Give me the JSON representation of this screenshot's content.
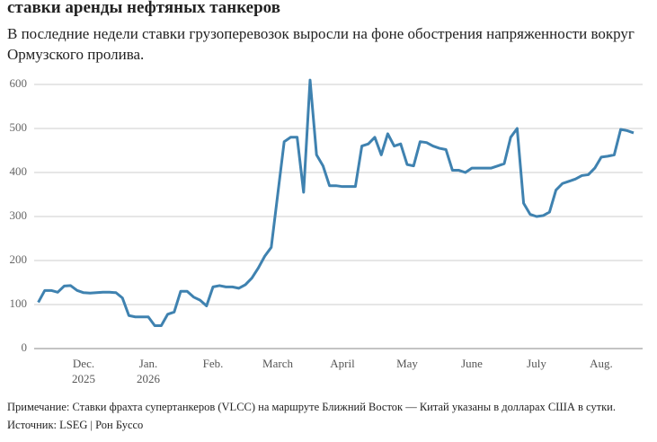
{
  "chart_data": {
    "type": "line",
    "title": "ставки аренды нефтяных танкеров",
    "subtitle": "В последние недели ставки грузоперевозок выросли на фоне обострения напряженности вокруг Ормузского пролива.",
    "note": "Примечание: Ставки фрахта супертанкеров (VLCC) на маршруте Ближний Восток — Китай указаны в долларах США в сутки.",
    "source": "Источник: LSEG | Рон Буссо",
    "categories": [
      null,
      null,
      null,
      null,
      null,
      null,
      null,
      "Dec.\n2025",
      null,
      null,
      null,
      null,
      null,
      null,
      null,
      null,
      null,
      "Jan.\n2026",
      null,
      null,
      null,
      null,
      null,
      null,
      null,
      null,
      null,
      "Feb.",
      null,
      null,
      null,
      null,
      null,
      null,
      null,
      null,
      null,
      "March",
      null,
      null,
      null,
      null,
      null,
      null,
      null,
      null,
      null,
      "April",
      null,
      null,
      null,
      null,
      null,
      null,
      null,
      null,
      null,
      "May",
      null,
      null,
      null,
      null,
      null,
      null,
      null,
      null,
      null,
      "June",
      null,
      null,
      null,
      null,
      null,
      null,
      null,
      null,
      null,
      "July",
      null,
      null,
      null,
      null,
      null,
      null,
      null,
      null,
      null,
      "Aug.",
      null,
      null,
      null,
      null,
      null
    ],
    "series": [
      {
        "name": "VLCC",
        "color": "#3f82b0",
        "values": [
          105,
          132,
          132,
          128,
          142,
          143,
          132,
          127,
          126,
          127,
          128,
          128,
          127,
          115,
          75,
          72,
          72,
          72,
          52,
          52,
          78,
          83,
          130,
          130,
          117,
          110,
          97,
          140,
          143,
          140,
          140,
          137,
          145,
          160,
          183,
          210,
          230,
          350,
          470,
          480,
          480,
          355,
          610,
          440,
          415,
          370,
          370,
          368,
          368,
          368,
          460,
          465,
          480,
          440,
          488,
          460,
          465,
          418,
          415,
          470,
          468,
          460,
          455,
          452,
          405,
          405,
          400,
          410,
          410,
          410,
          410,
          415,
          420,
          480,
          500,
          330,
          305,
          300,
          302,
          310,
          360,
          375,
          380,
          385,
          393,
          395,
          410,
          435,
          437,
          440,
          498,
          495,
          490
        ]
      }
    ],
    "ylim": [
      0,
      600
    ],
    "yticks": [
      0,
      100,
      200,
      300,
      400,
      500,
      600
    ],
    "grid": true
  }
}
